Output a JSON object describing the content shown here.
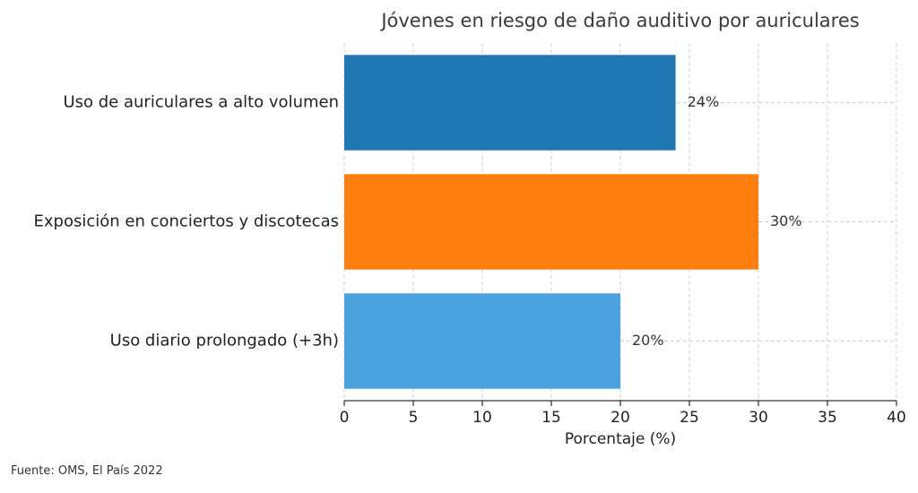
{
  "chart_data": {
    "type": "bar",
    "orientation": "horizontal",
    "title": "Jóvenes en riesgo de daño auditivo por auriculares",
    "categories": [
      "Uso de auriculares a alto volumen",
      "Exposición en conciertos y discotecas",
      "Uso diario prolongado (+3h)"
    ],
    "values": [
      24,
      30,
      20
    ],
    "value_labels": [
      "24%",
      "30%",
      "20%"
    ],
    "colors": [
      "#1f77b4",
      "#ff7f0e",
      "#4aa3df"
    ],
    "xlabel": "Porcentaje (%)",
    "ylabel": "",
    "xlim": [
      0,
      40
    ],
    "xticks": [
      0,
      5,
      10,
      15,
      20,
      25,
      30,
      35,
      40
    ],
    "grid": true
  },
  "source": "Fuente: OMS, El País 2022"
}
